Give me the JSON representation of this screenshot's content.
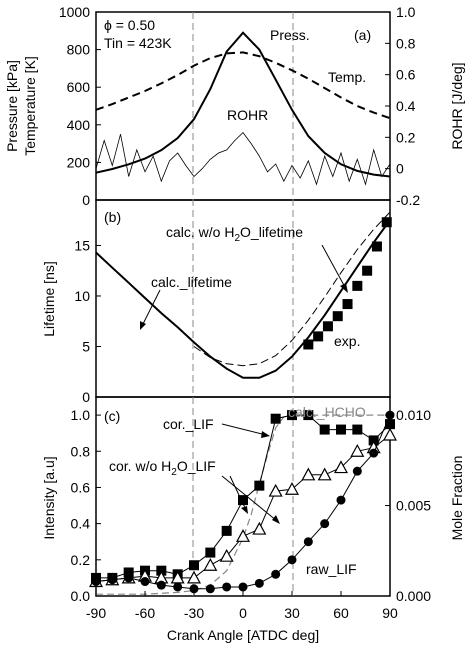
{
  "chart_data": [
    {
      "panel": "(a)",
      "type": "line",
      "annotations": {
        "phi": "ϕ = 0.50",
        "tin": "Tin = 423K",
        "panel_label": "(a)",
        "press_label": "Press.",
        "temp_label": "Temp.",
        "rohr_label": "ROHR"
      },
      "xlim": [
        -90,
        90
      ],
      "ylabel_left_line1": "Pressure [kPa]",
      "ylabel_left_line2": "Temperature [K]",
      "ylim_left": [
        0,
        1000
      ],
      "yticks_left": [
        "0",
        "200",
        "400",
        "600",
        "800",
        "1000"
      ],
      "ylabel_right": "ROHR [J/deg]",
      "ylim_right": [
        -0.2,
        1.0
      ],
      "yticks_right": [
        "-0.2",
        "0",
        "0.2",
        "0.4",
        "0.6",
        "0.8",
        "1.0"
      ],
      "series": [
        {
          "style": "solid",
          "axis": "left",
          "x": [
            -90,
            -80,
            -70,
            -60,
            -50,
            -40,
            -30,
            -20,
            -10,
            0,
            10,
            20,
            30,
            40,
            50,
            60,
            70,
            80,
            90
          ],
          "y": [
            145,
            165,
            190,
            220,
            265,
            330,
            430,
            590,
            790,
            890,
            800,
            640,
            480,
            340,
            250,
            190,
            155,
            135,
            125
          ]
        },
        {
          "style": "dashed",
          "axis": "left",
          "x": [
            -90,
            -80,
            -70,
            -60,
            -50,
            -40,
            -30,
            -20,
            -10,
            0,
            10,
            20,
            30,
            40,
            50,
            60,
            70,
            80,
            90
          ],
          "y": [
            480,
            510,
            545,
            580,
            620,
            665,
            715,
            755,
            780,
            785,
            765,
            730,
            690,
            645,
            595,
            545,
            500,
            465,
            435
          ]
        },
        {
          "style": "thin-noisy",
          "axis": "right",
          "x": [
            -90,
            -85,
            -80,
            -75,
            -70,
            -65,
            -60,
            -55,
            -50,
            -45,
            -40,
            -35,
            -30,
            -25,
            -20,
            -15,
            -10,
            -5,
            0,
            5,
            10,
            15,
            20,
            25,
            30,
            35,
            40,
            45,
            50,
            55,
            60,
            65,
            70,
            75,
            80,
            85,
            90
          ],
          "y": [
            0.0,
            0.18,
            0.02,
            0.22,
            -0.05,
            0.12,
            -0.02,
            0.08,
            -0.08,
            0.05,
            0.1,
            0.02,
            -0.05,
            0.0,
            0.06,
            0.1,
            0.12,
            0.18,
            0.23,
            0.16,
            0.08,
            -0.02,
            0.03,
            -0.08,
            0.02,
            -0.06,
            0.05,
            -0.1,
            0.08,
            -0.05,
            0.1,
            -0.08,
            0.06,
            -0.1,
            0.12,
            -0.05,
            0.03
          ]
        }
      ]
    },
    {
      "panel": "(b)",
      "type": "line",
      "annotations": {
        "panel_label": "(b)",
        "calc_wo_prefix": "calc. w/o H",
        "calc_wo_sub": "2",
        "calc_wo_suffix": "O_lifetime",
        "calc_lifetime": "calc._lifetime",
        "exp": "exp."
      },
      "xlim": [
        -90,
        90
      ],
      "ylabel": "Lifetime [ns]",
      "ylim": [
        0,
        19.5
      ],
      "yticks": [
        "0",
        "5",
        "10",
        "15"
      ],
      "series": [
        {
          "style": "solid",
          "x": [
            -90,
            -80,
            -70,
            -60,
            -50,
            -40,
            -30,
            -20,
            -10,
            0,
            10,
            20,
            30,
            40,
            50,
            60,
            70,
            80,
            90
          ],
          "y": [
            14.3,
            12.8,
            11.3,
            9.8,
            8.3,
            6.9,
            5.4,
            4.0,
            2.8,
            1.9,
            1.9,
            2.6,
            4.0,
            5.9,
            8.1,
            10.5,
            12.9,
            15.3,
            17.5
          ]
        },
        {
          "style": "dashed",
          "x": [
            -30,
            -20,
            -10,
            0,
            10,
            20,
            30,
            40,
            50,
            60,
            70,
            80,
            90
          ],
          "y": [
            5.0,
            3.9,
            3.3,
            3.1,
            3.3,
            4.1,
            5.6,
            7.6,
            9.9,
            12.3,
            14.6,
            16.6,
            18.3
          ]
        },
        {
          "style": "markers-square",
          "x": [
            40,
            46,
            52,
            58,
            64,
            70,
            76,
            82,
            88
          ],
          "y": [
            5.2,
            6.0,
            7.0,
            8.0,
            9.2,
            11.0,
            12.5,
            14.9,
            17.3
          ]
        }
      ]
    },
    {
      "panel": "(c)",
      "type": "line",
      "annotations": {
        "panel_label": "(c)",
        "cor_lif": "cor._LIF",
        "cor_wo_prefix": "cor. w/o H",
        "cor_wo_sub": "2",
        "cor_wo_suffix": "O_LIF",
        "calc_hcho": "calc._HCHO",
        "raw_lif": "raw_LIF"
      },
      "xlabel": "Crank Angle [ATDC deg]",
      "xlim": [
        -90,
        90
      ],
      "xticks": [
        "-90",
        "-60",
        "-30",
        "0",
        "30",
        "60",
        "90"
      ],
      "ylabel_left": "Intensity [a.u]",
      "ylim_left": [
        0,
        1.1
      ],
      "yticks_left": [
        "0.0",
        "0.2",
        "0.4",
        "0.6",
        "0.8",
        "1.0"
      ],
      "ylabel_right": "Mole Fraction",
      "ylim_right": [
        0,
        0.011
      ],
      "yticks_right": [
        "0.000",
        "0.005",
        "0.010"
      ],
      "series": [
        {
          "name": "cor._LIF",
          "marker": "filled-square",
          "x": [
            -90,
            -80,
            -70,
            -60,
            -50,
            -40,
            -30,
            -20,
            -10,
            0,
            10,
            20,
            30,
            40,
            50,
            60,
            70,
            80,
            90
          ],
          "y": [
            0.1,
            0.1,
            0.13,
            0.14,
            0.14,
            0.12,
            0.17,
            0.24,
            0.36,
            0.53,
            0.61,
            0.98,
            1.0,
            1.0,
            0.92,
            0.92,
            0.92,
            0.86,
            0.95
          ]
        },
        {
          "name": "cor. w/o H2O_LIF",
          "marker": "open-triangle",
          "x": [
            -90,
            -80,
            -70,
            -60,
            -50,
            -40,
            -30,
            -20,
            -10,
            0,
            10,
            20,
            30,
            40,
            50,
            60,
            70,
            80,
            90
          ],
          "y": [
            0.08,
            0.09,
            0.1,
            0.11,
            0.1,
            0.1,
            0.1,
            0.17,
            0.22,
            0.33,
            0.37,
            0.58,
            0.59,
            0.67,
            0.67,
            0.71,
            0.8,
            0.82,
            0.89
          ]
        },
        {
          "name": "raw_LIF",
          "marker": "filled-circle",
          "x": [
            -90,
            -80,
            -70,
            -60,
            -50,
            -40,
            -30,
            -20,
            -10,
            0,
            10,
            20,
            30,
            40,
            50,
            60,
            70,
            80,
            90
          ],
          "y": [
            0.08,
            0.09,
            0.1,
            0.08,
            0.06,
            0.05,
            0.04,
            0.04,
            0.05,
            0.05,
            0.07,
            0.12,
            0.2,
            0.3,
            0.4,
            0.53,
            0.69,
            0.79,
            1.0
          ]
        },
        {
          "name": "calc._HCHO",
          "marker": "none",
          "axis": "right",
          "x": [
            -90,
            -60,
            -40,
            -30,
            -20,
            -10,
            0,
            5,
            10,
            15,
            20,
            25,
            30,
            40,
            50,
            60,
            70,
            80,
            90
          ],
          "y": [
            0.0001,
            0.0001,
            0.0002,
            0.0003,
            0.0006,
            0.0014,
            0.0032,
            0.0045,
            0.0062,
            0.0078,
            0.0093,
            0.0099,
            0.01,
            0.01,
            0.01,
            0.01,
            0.01,
            0.01,
            0.01
          ]
        }
      ]
    }
  ]
}
